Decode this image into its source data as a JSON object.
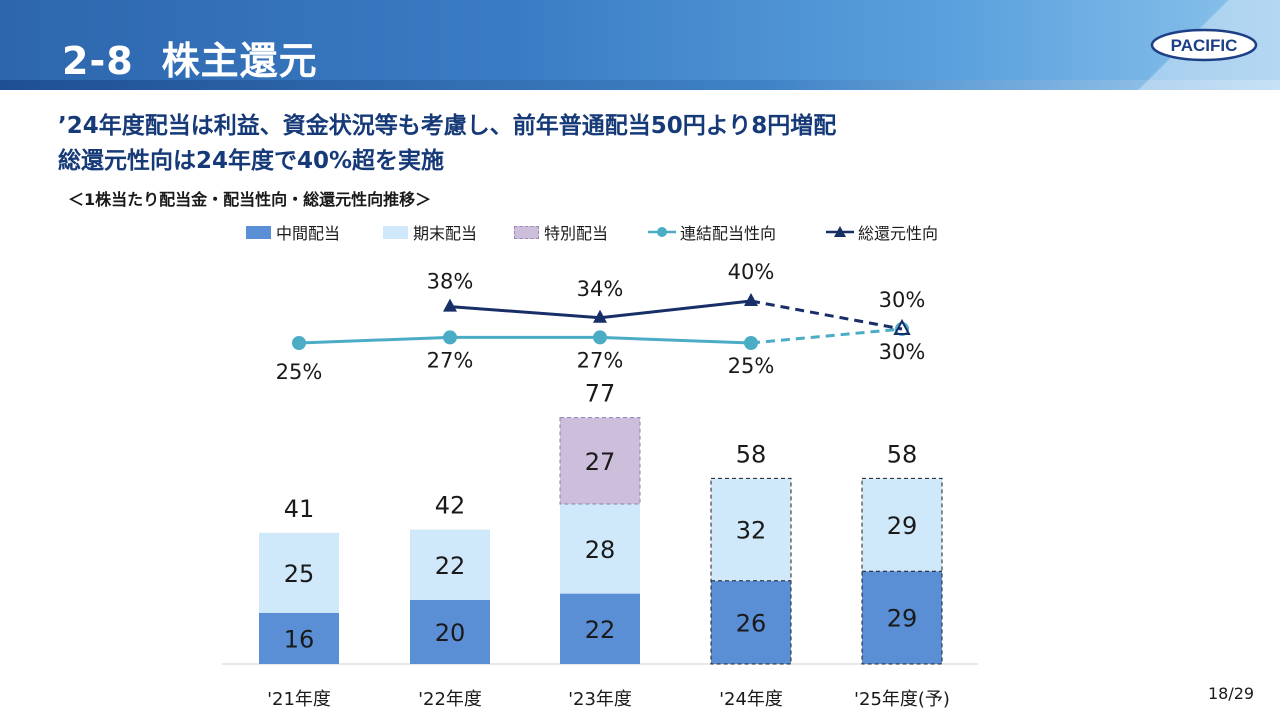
{
  "header": {
    "section_number": "2-8",
    "title": "株主還元",
    "logo_text": "PACIFIC"
  },
  "headline": {
    "line1": "’24年度配当は利益、資金状況等も考慮し、前年普通配当50円より8円増配",
    "line2": "総還元性向は24年度で40%超を実施"
  },
  "chart_subtitle": "＜1株当たり配当金・配当性向・総還元性向推移＞",
  "legend": {
    "interim": "中間配当",
    "year_end": "期末配当",
    "special": "特別配当",
    "payout": "連結配当性向",
    "total_return": "総還元性向"
  },
  "colors": {
    "interim": "#5a8fd6",
    "year_end": "#cfe9fb",
    "special": "#cdbfdc",
    "payout": "#4bacc6",
    "total_return": "#172e66",
    "title_text": "#163a78"
  },
  "chart_data": {
    "type": "bar",
    "stacked": true,
    "categories": [
      "'21年度",
      "'22年度",
      "'23年度",
      "'24年度",
      "'25年度(予)"
    ],
    "series": [
      {
        "name": "中間配当",
        "values": [
          16,
          20,
          22,
          26,
          29
        ]
      },
      {
        "name": "期末配当",
        "values": [
          25,
          22,
          28,
          32,
          29
        ]
      },
      {
        "name": "特別配当",
        "values": [
          0,
          0,
          27,
          0,
          0
        ]
      }
    ],
    "totals": [
      41,
      42,
      77,
      58,
      58
    ],
    "total_labels": [
      "41",
      "42",
      "77",
      "58",
      "58"
    ],
    "lines": [
      {
        "name": "連結配当性向",
        "values": [
          25,
          27,
          27,
          25,
          30
        ],
        "labels": [
          "25%",
          "27%",
          "27%",
          "25%",
          "30%"
        ]
      },
      {
        "name": "総還元性向",
        "values": [
          null,
          38,
          34,
          40,
          30
        ],
        "labels": [
          "",
          "38%",
          "34%",
          "40%",
          "30%"
        ]
      }
    ],
    "forecast_category": "'25年度(予)",
    "dashed_outline_categories": [
      "'24年度",
      "'25年度(予)"
    ]
  },
  "page": {
    "number": "18/29"
  }
}
